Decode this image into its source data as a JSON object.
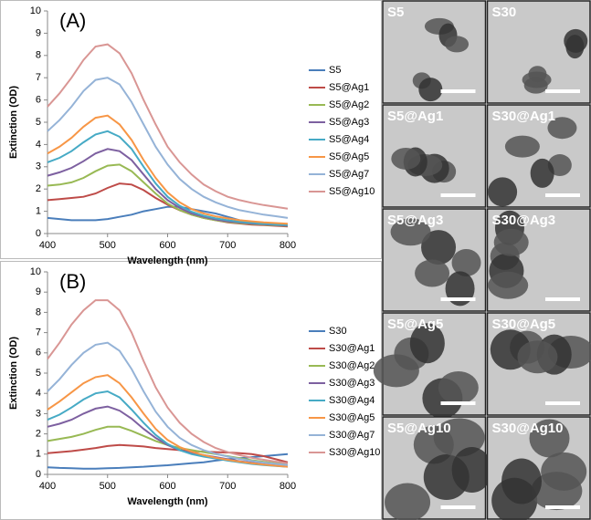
{
  "chart_data": [
    {
      "type": "line",
      "panel_label": "(A)",
      "x_label": "Wavelength (nm)",
      "y_label": "Extinction (OD)",
      "x": [
        400,
        420,
        440,
        460,
        480,
        500,
        520,
        540,
        560,
        580,
        600,
        620,
        640,
        660,
        680,
        700,
        720,
        740,
        760,
        780,
        800
      ],
      "xlim": [
        400,
        800
      ],
      "xticks": [
        400,
        500,
        600,
        700,
        800
      ],
      "ylim": [
        0,
        10
      ],
      "yticks": [
        0,
        1,
        2,
        3,
        4,
        5,
        6,
        7,
        8,
        9,
        10
      ],
      "grid": false,
      "legend": "right",
      "series": [
        {
          "name": "S5",
          "color": "#4a7ebb",
          "values": [
            0.7,
            0.65,
            0.6,
            0.6,
            0.6,
            0.65,
            0.75,
            0.85,
            1.0,
            1.1,
            1.2,
            1.2,
            1.1,
            1.0,
            0.9,
            0.75,
            0.6,
            0.5,
            0.45,
            0.4,
            0.35
          ]
        },
        {
          "name": "S5@Ag1",
          "color": "#be4b48",
          "values": [
            1.5,
            1.55,
            1.6,
            1.65,
            1.8,
            2.05,
            2.25,
            2.2,
            1.95,
            1.6,
            1.3,
            1.05,
            0.85,
            0.7,
            0.6,
            0.5,
            0.45,
            0.4,
            0.38,
            0.35,
            0.32
          ]
        },
        {
          "name": "S5@Ag2",
          "color": "#98b954",
          "values": [
            2.15,
            2.2,
            2.3,
            2.5,
            2.8,
            3.05,
            3.1,
            2.8,
            2.3,
            1.8,
            1.35,
            1.05,
            0.85,
            0.7,
            0.6,
            0.52,
            0.47,
            0.43,
            0.4,
            0.37,
            0.35
          ]
        },
        {
          "name": "S5@Ag3",
          "color": "#7d60a0",
          "values": [
            2.6,
            2.75,
            2.95,
            3.25,
            3.6,
            3.8,
            3.7,
            3.3,
            2.65,
            2.0,
            1.5,
            1.15,
            0.9,
            0.75,
            0.63,
            0.55,
            0.5,
            0.45,
            0.42,
            0.39,
            0.36
          ]
        },
        {
          "name": "S5@Ag4",
          "color": "#46aac5",
          "values": [
            3.2,
            3.4,
            3.7,
            4.1,
            4.45,
            4.6,
            4.35,
            3.8,
            3.0,
            2.25,
            1.65,
            1.25,
            0.98,
            0.8,
            0.68,
            0.6,
            0.53,
            0.48,
            0.44,
            0.41,
            0.38
          ]
        },
        {
          "name": "S5@Ag5",
          "color": "#f79646",
          "values": [
            3.6,
            3.9,
            4.3,
            4.8,
            5.2,
            5.3,
            4.9,
            4.2,
            3.3,
            2.5,
            1.85,
            1.4,
            1.1,
            0.9,
            0.77,
            0.68,
            0.6,
            0.55,
            0.5,
            0.47,
            0.44
          ]
        },
        {
          "name": "S5@Ag7",
          "color": "#95b3d7",
          "values": [
            4.6,
            5.1,
            5.7,
            6.4,
            6.9,
            7.0,
            6.7,
            5.9,
            4.9,
            3.9,
            3.1,
            2.45,
            2.0,
            1.65,
            1.4,
            1.2,
            1.05,
            0.95,
            0.85,
            0.78,
            0.7
          ]
        },
        {
          "name": "S5@Ag10",
          "color": "#d99694",
          "values": [
            5.7,
            6.3,
            7.0,
            7.8,
            8.4,
            8.5,
            8.1,
            7.2,
            6.0,
            4.9,
            3.9,
            3.2,
            2.65,
            2.2,
            1.9,
            1.65,
            1.5,
            1.38,
            1.28,
            1.2,
            1.12
          ]
        }
      ]
    },
    {
      "type": "line",
      "panel_label": "(B)",
      "x_label": "Wavelength (nm)",
      "y_label": "Extinction (OD)",
      "x": [
        400,
        420,
        440,
        460,
        480,
        500,
        520,
        540,
        560,
        580,
        600,
        620,
        640,
        660,
        680,
        700,
        720,
        740,
        760,
        780,
        800
      ],
      "xlim": [
        400,
        800
      ],
      "xticks": [
        400,
        500,
        600,
        700,
        800
      ],
      "ylim": [
        0,
        10
      ],
      "yticks": [
        0,
        1,
        2,
        3,
        4,
        5,
        6,
        7,
        8,
        9,
        10
      ],
      "grid": false,
      "legend": "right",
      "series": [
        {
          "name": "S30",
          "color": "#4a7ebb",
          "values": [
            0.35,
            0.32,
            0.3,
            0.28,
            0.28,
            0.3,
            0.32,
            0.35,
            0.38,
            0.42,
            0.45,
            0.5,
            0.55,
            0.6,
            0.68,
            0.75,
            0.8,
            0.85,
            0.9,
            0.95,
            1.0
          ]
        },
        {
          "name": "S30@Ag1",
          "color": "#be4b48",
          "values": [
            1.05,
            1.1,
            1.15,
            1.22,
            1.3,
            1.4,
            1.45,
            1.42,
            1.38,
            1.3,
            1.25,
            1.2,
            1.15,
            1.12,
            1.1,
            1.08,
            1.05,
            1.0,
            0.9,
            0.75,
            0.6
          ]
        },
        {
          "name": "S30@Ag2",
          "color": "#98b954",
          "values": [
            1.65,
            1.75,
            1.85,
            2.0,
            2.2,
            2.35,
            2.35,
            2.15,
            1.9,
            1.65,
            1.45,
            1.3,
            1.2,
            1.1,
            1.0,
            0.9,
            0.8,
            0.7,
            0.62,
            0.55,
            0.48
          ]
        },
        {
          "name": "S30@Ag3",
          "color": "#7d60a0",
          "values": [
            2.35,
            2.5,
            2.7,
            3.0,
            3.25,
            3.35,
            3.15,
            2.75,
            2.25,
            1.8,
            1.45,
            1.2,
            1.05,
            0.95,
            0.85,
            0.75,
            0.65,
            0.58,
            0.5,
            0.45,
            0.4
          ]
        },
        {
          "name": "S30@Ag4",
          "color": "#46aac5",
          "values": [
            2.7,
            2.95,
            3.3,
            3.7,
            4.0,
            4.1,
            3.8,
            3.2,
            2.55,
            1.95,
            1.5,
            1.2,
            1.0,
            0.88,
            0.78,
            0.68,
            0.6,
            0.52,
            0.46,
            0.42,
            0.38
          ]
        },
        {
          "name": "S30@Ag5",
          "color": "#f79646",
          "values": [
            3.2,
            3.6,
            4.05,
            4.5,
            4.8,
            4.9,
            4.5,
            3.8,
            3.0,
            2.25,
            1.7,
            1.35,
            1.12,
            0.95,
            0.82,
            0.72,
            0.63,
            0.55,
            0.48,
            0.43,
            0.38
          ]
        },
        {
          "name": "S30@Ag7",
          "color": "#95b3d7",
          "values": [
            4.1,
            4.7,
            5.4,
            6.0,
            6.4,
            6.5,
            6.1,
            5.2,
            4.1,
            3.1,
            2.35,
            1.8,
            1.45,
            1.2,
            1.02,
            0.88,
            0.76,
            0.66,
            0.58,
            0.52,
            0.46
          ]
        },
        {
          "name": "S30@Ag10",
          "color": "#d99694",
          "values": [
            5.7,
            6.5,
            7.4,
            8.1,
            8.6,
            8.6,
            8.1,
            7.0,
            5.6,
            4.3,
            3.3,
            2.55,
            2.0,
            1.6,
            1.3,
            1.1,
            0.95,
            0.82,
            0.72,
            0.63,
            0.55
          ]
        }
      ]
    }
  ],
  "tem_panels": [
    {
      "label": "S5"
    },
    {
      "label": "S30"
    },
    {
      "label": "S5@Ag1"
    },
    {
      "label": "S30@Ag1"
    },
    {
      "label": "S5@Ag3"
    },
    {
      "label": "S30@Ag3"
    },
    {
      "label": "S5@Ag5"
    },
    {
      "label": "S30@Ag5"
    },
    {
      "label": "S5@Ag10"
    },
    {
      "label": "S30@Ag10"
    }
  ]
}
